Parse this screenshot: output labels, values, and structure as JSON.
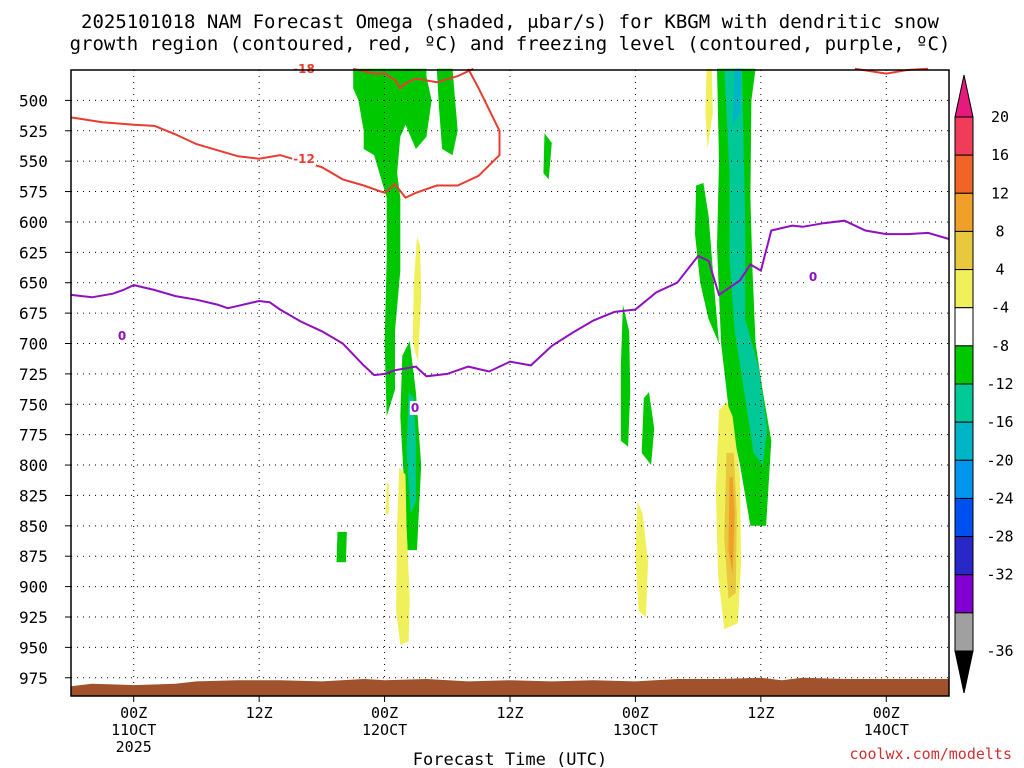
{
  "chart_data": {
    "type": "time-height",
    "title_line1": "2025101018 NAM Forecast Omega (shaded, μbar/s) for KBGM with dendritic snow",
    "title_line2": "growth region (contoured, red, ºC) and freezing level (contoured, purple, ºC)",
    "xlabel": "Forecast Time (UTC)",
    "credit": "coolwx.com/modelts",
    "y_ticks": [
      "500",
      "525",
      "550",
      "575",
      "600",
      "625",
      "650",
      "675",
      "700",
      "725",
      "750",
      "775",
      "800",
      "825",
      "850",
      "875",
      "900",
      "925",
      "950",
      "975"
    ],
    "x_ticks": [
      {
        "hour": 0,
        "line1": "00Z",
        "line2": "11OCT",
        "line3": "2025"
      },
      {
        "hour": 12,
        "line1": "12Z",
        "line2": "",
        "line3": ""
      },
      {
        "hour": 24,
        "line1": "00Z",
        "line2": "12OCT",
        "line3": ""
      },
      {
        "hour": 36,
        "line1": "12Z",
        "line2": "",
        "line3": ""
      },
      {
        "hour": 48,
        "line1": "00Z",
        "line2": "13OCT",
        "line3": ""
      },
      {
        "hour": 60,
        "line1": "12Z",
        "line2": "",
        "line3": ""
      },
      {
        "hour": 72,
        "line1": "00Z",
        "line2": "14OCT",
        "line3": ""
      }
    ],
    "x_range_hours": [
      -6,
      78
    ],
    "y_range_mb": [
      475,
      990
    ],
    "colorbar": {
      "labels": [
        "20",
        "16",
        "12",
        "8",
        "4",
        "-4",
        "-8",
        "-12",
        "-16",
        "-20",
        "-24",
        "-28",
        "-32",
        "-36"
      ],
      "colors": [
        "#f03c5a",
        "#f06428",
        "#f0a028",
        "#e8c83c",
        "#f0f05a",
        "#ffffff",
        "#00c800",
        "#00c896",
        "#00b4c8",
        "#0096f0",
        "#0050f0",
        "#2828c8",
        "#8200d2",
        "#a0a0a0"
      ],
      "top_arrow_color": "#e6197d",
      "bottom_arrow_color": "#000000"
    },
    "contour_labels": {
      "red_upper": "-18",
      "red_lower": "-12",
      "freeze_a": "0",
      "freeze_b": "0",
      "freeze_c": "0"
    },
    "freezing_level_mb": [
      [
        -6,
        660
      ],
      [
        -4,
        662
      ],
      [
        -2,
        659
      ],
      [
        -1,
        656
      ],
      [
        0,
        652
      ],
      [
        2,
        656
      ],
      [
        4,
        661
      ],
      [
        6,
        664
      ],
      [
        8,
        668
      ],
      [
        9,
        671
      ],
      [
        10,
        669
      ],
      [
        12,
        665
      ],
      [
        13,
        666
      ],
      [
        14,
        672
      ],
      [
        16,
        682
      ],
      [
        18,
        690
      ],
      [
        20,
        700
      ],
      [
        22,
        718
      ],
      [
        23,
        726
      ],
      [
        24,
        725
      ],
      [
        25,
        722
      ],
      [
        27,
        719
      ],
      [
        28,
        727
      ],
      [
        30,
        725
      ],
      [
        32,
        719
      ],
      [
        34,
        723
      ],
      [
        36,
        715
      ],
      [
        38,
        718
      ],
      [
        40,
        702
      ],
      [
        42,
        691
      ],
      [
        44,
        681
      ],
      [
        46,
        674
      ],
      [
        48,
        672
      ],
      [
        50,
        658
      ],
      [
        52,
        650
      ],
      [
        54,
        628
      ],
      [
        55,
        632
      ],
      [
        56,
        660
      ],
      [
        58,
        648
      ],
      [
        59,
        635
      ],
      [
        60,
        640
      ],
      [
        61,
        607
      ],
      [
        63,
        603
      ],
      [
        64,
        604
      ],
      [
        66,
        601
      ],
      [
        68,
        599
      ],
      [
        70,
        607
      ],
      [
        72,
        610
      ],
      [
        74,
        610
      ],
      [
        76,
        609
      ],
      [
        78,
        614
      ]
    ],
    "red_upper_contour_mb": [
      [
        21,
        474
      ],
      [
        23,
        478
      ],
      [
        24,
        478
      ],
      [
        25,
        483
      ],
      [
        25.5,
        490
      ],
      [
        26,
        486
      ],
      [
        27,
        482
      ],
      [
        29,
        485
      ],
      [
        31,
        480
      ],
      [
        32,
        476
      ],
      [
        32.5,
        474
      ]
    ],
    "red_lower_contour_mb": [
      [
        -6,
        514
      ],
      [
        -3,
        518
      ],
      [
        0,
        520
      ],
      [
        2,
        521
      ],
      [
        4,
        528
      ],
      [
        6,
        536
      ],
      [
        8,
        541
      ],
      [
        10,
        546
      ],
      [
        12,
        548
      ],
      [
        14,
        545
      ],
      [
        16,
        550
      ],
      [
        18,
        555
      ],
      [
        20,
        565
      ],
      [
        22,
        570
      ],
      [
        24,
        576
      ],
      [
        25,
        569
      ],
      [
        26,
        580
      ],
      [
        27,
        576
      ],
      [
        29,
        570
      ],
      [
        31,
        570
      ],
      [
        33,
        562
      ],
      [
        35,
        545
      ],
      [
        35,
        525
      ],
      [
        33,
        490
      ],
      [
        32,
        474
      ]
    ],
    "red_top_right_mb": [
      [
        69,
        474
      ],
      [
        72,
        478
      ],
      [
        74,
        475
      ],
      [
        76,
        474
      ]
    ],
    "omega_regions": [
      {
        "level": "-8",
        "pts": [
          [
            21,
            474
          ],
          [
            21,
            490
          ],
          [
            21.5,
            500
          ],
          [
            22,
            525
          ],
          [
            22,
            540
          ],
          [
            23,
            545
          ],
          [
            24.2,
            580
          ],
          [
            24.2,
            630
          ],
          [
            24,
            700
          ],
          [
            24.2,
            760
          ],
          [
            25,
            738
          ],
          [
            25,
            690
          ],
          [
            25.5,
            640
          ],
          [
            25.5,
            580
          ],
          [
            25.2,
            560
          ],
          [
            25.5,
            530
          ],
          [
            26,
            520
          ],
          [
            27,
            540
          ],
          [
            28,
            530
          ],
          [
            28.5,
            500
          ],
          [
            28,
            480
          ],
          [
            28,
            474
          ]
        ]
      },
      {
        "level": "-8",
        "pts": [
          [
            29,
            474
          ],
          [
            29.2,
            505
          ],
          [
            29.5,
            540
          ],
          [
            30.5,
            545
          ],
          [
            31,
            525
          ],
          [
            30.5,
            474
          ]
        ]
      },
      {
        "level": "-8",
        "pts": [
          [
            25.7,
            710
          ],
          [
            25.5,
            760
          ],
          [
            25.9,
            820
          ],
          [
            26.2,
            870
          ],
          [
            27.1,
            870
          ],
          [
            27.5,
            800
          ],
          [
            27,
            740
          ],
          [
            26.4,
            698
          ]
        ]
      },
      {
        "level": "-8",
        "pts": [
          [
            19.5,
            855
          ],
          [
            19.4,
            880
          ],
          [
            20.3,
            880
          ],
          [
            20.4,
            855
          ]
        ]
      },
      {
        "level": "-8",
        "pts": [
          [
            39.3,
            527
          ],
          [
            39.2,
            560
          ],
          [
            39.7,
            565
          ],
          [
            40,
            535
          ]
        ]
      },
      {
        "level": "-8",
        "pts": [
          [
            46.8,
            668
          ],
          [
            46.6,
            720
          ],
          [
            46.6,
            780
          ],
          [
            47.3,
            785
          ],
          [
            47.5,
            740
          ],
          [
            47.4,
            690
          ]
        ]
      },
      {
        "level": "-8",
        "pts": [
          [
            48.8,
            745
          ],
          [
            48.6,
            790
          ],
          [
            49.5,
            800
          ],
          [
            49.8,
            770
          ],
          [
            49.3,
            740
          ]
        ]
      },
      {
        "level": "-8",
        "pts": [
          [
            53.8,
            570
          ],
          [
            53.7,
            610
          ],
          [
            54.2,
            650
          ],
          [
            55,
            680
          ],
          [
            56,
            700
          ],
          [
            55.5,
            650
          ],
          [
            55,
            595
          ],
          [
            54.5,
            568
          ]
        ]
      },
      {
        "level": "-8",
        "pts": [
          [
            55.8,
            474
          ],
          [
            56,
            550
          ],
          [
            55.8,
            620
          ],
          [
            56.2,
            700
          ],
          [
            57,
            760
          ],
          [
            58,
            800
          ],
          [
            59,
            850
          ],
          [
            60.5,
            850
          ],
          [
            61,
            780
          ],
          [
            60.2,
            740
          ],
          [
            59.5,
            700
          ],
          [
            59.2,
            640
          ],
          [
            59,
            580
          ],
          [
            59.1,
            500
          ],
          [
            59.5,
            474
          ]
        ]
      },
      {
        "level": "-12",
        "pts": [
          [
            56.5,
            474
          ],
          [
            57,
            560
          ],
          [
            57,
            630
          ],
          [
            57.5,
            690
          ],
          [
            58.5,
            745
          ],
          [
            59.3,
            790
          ],
          [
            60.2,
            800
          ],
          [
            60.6,
            770
          ],
          [
            59.8,
            720
          ],
          [
            58.5,
            680
          ],
          [
            58.5,
            600
          ],
          [
            58.2,
            474
          ]
        ]
      },
      {
        "level": "-12",
        "pts": [
          [
            26.3,
            740
          ],
          [
            26.1,
            790
          ],
          [
            26.5,
            840
          ],
          [
            27,
            830
          ],
          [
            27,
            780
          ],
          [
            26.8,
            745
          ]
        ]
      },
      {
        "level": "-16",
        "pts": [
          [
            57.5,
            474
          ],
          [
            57.3,
            520
          ],
          [
            58,
            510
          ],
          [
            58.1,
            474
          ]
        ]
      },
      {
        "level": "4",
        "pts": [
          [
            27.1,
            612
          ],
          [
            26.8,
            650
          ],
          [
            26.7,
            700
          ],
          [
            27.2,
            715
          ],
          [
            27.5,
            660
          ],
          [
            27.4,
            620
          ]
        ]
      },
      {
        "level": "4",
        "pts": [
          [
            25.4,
            802
          ],
          [
            25.2,
            850
          ],
          [
            25.1,
            920
          ],
          [
            25.5,
            948
          ],
          [
            26.3,
            945
          ],
          [
            26.4,
            910
          ],
          [
            26.1,
            850
          ],
          [
            26,
            808
          ]
        ]
      },
      {
        "level": "4",
        "pts": [
          [
            24.2,
            815
          ],
          [
            24.1,
            840
          ],
          [
            24.4,
            840
          ],
          [
            24.4,
            815
          ]
        ]
      },
      {
        "level": "4",
        "pts": [
          [
            48.2,
            830
          ],
          [
            48,
            875
          ],
          [
            48.3,
            920
          ],
          [
            49,
            925
          ],
          [
            49.2,
            880
          ],
          [
            48.7,
            840
          ]
        ]
      },
      {
        "level": "4",
        "pts": [
          [
            54.8,
            474
          ],
          [
            54.7,
            510
          ],
          [
            54.9,
            540
          ],
          [
            55.4,
            510
          ],
          [
            55.3,
            474
          ]
        ]
      },
      {
        "level": "4",
        "pts": [
          [
            56,
            755
          ],
          [
            55.7,
            820
          ],
          [
            55.9,
            890
          ],
          [
            56.5,
            935
          ],
          [
            57.8,
            930
          ],
          [
            58.1,
            880
          ],
          [
            58,
            810
          ],
          [
            57.3,
            760
          ],
          [
            56.7,
            748
          ]
        ]
      },
      {
        "level": "8",
        "pts": [
          [
            56.7,
            790
          ],
          [
            56.5,
            860
          ],
          [
            56.9,
            910
          ],
          [
            57.6,
            905
          ],
          [
            57.7,
            840
          ],
          [
            57.4,
            790
          ]
        ]
      },
      {
        "level": "12",
        "pts": [
          [
            57,
            810
          ],
          [
            56.9,
            870
          ],
          [
            57.3,
            890
          ],
          [
            57.5,
            840
          ],
          [
            57.3,
            810
          ]
        ]
      }
    ],
    "terrain_top_mb": [
      [
        -6,
        982
      ],
      [
        -4,
        980
      ],
      [
        0,
        981
      ],
      [
        4,
        980
      ],
      [
        6,
        978
      ],
      [
        10,
        977
      ],
      [
        14,
        977
      ],
      [
        18,
        978
      ],
      [
        22,
        976
      ],
      [
        24,
        977
      ],
      [
        28,
        976
      ],
      [
        32,
        978
      ],
      [
        36,
        977
      ],
      [
        40,
        978
      ],
      [
        44,
        977
      ],
      [
        48,
        978
      ],
      [
        52,
        976
      ],
      [
        56,
        976
      ],
      [
        60,
        975
      ],
      [
        62,
        977
      ],
      [
        64,
        975
      ],
      [
        68,
        976
      ],
      [
        72,
        976
      ],
      [
        76,
        976
      ],
      [
        78,
        976
      ]
    ]
  }
}
